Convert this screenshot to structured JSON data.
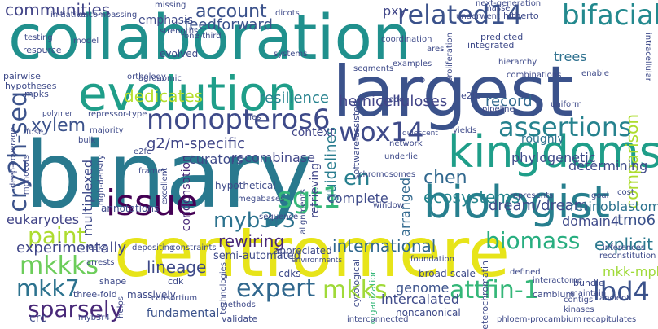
{
  "words": {
    "collaboration": "collaboration",
    "binary": "binary",
    "centromere": "centromere",
    "largest": "largest",
    "evolution": "evolution",
    "kingdoms": "kingdoms",
    "biologist": "biologist",
    "issue": "issue",
    "monopteros6": "monopteros6",
    "bifacial": "bifacial",
    "related14": "related14",
    "cry2h_seq": "cry2h-seq",
    "sgt1": "sgt1",
    "wox14": "wox14",
    "assertions": "assertions",
    "mkkks": "mkkks",
    "mkk7": "mkk7",
    "mkks": "mkks",
    "attfin_1": "attfin-1",
    "lbd4": "lbd4",
    "sparsely": "sparsely",
    "paint": "paint",
    "expert": "expert",
    "myb3r3": "myb3r3",
    "biomass": "biomass",
    "en": "en",
    "chen": "chen",
    "account": "account",
    "communities": "communities",
    "hemicelluloses": "hemicelluloses",
    "record": "record",
    "comparison": "comparison",
    "explicit": "explicit",
    "international": "international",
    "lineage": "lineage",
    "xylem": "xylem",
    "dream_dream": "dream/dream",
    "ecosystems": "ecosystems",
    "g2m_specific": "g2/m-specific",
    "recombinase": "recombinase",
    "experimentally": "experimentally",
    "dedicates": "dedicates",
    "resilience": "resilience",
    "guidelines": "guidelines",
    "phylogenetic": "phylogenetic",
    "determining": "determining",
    "tmo6": "tmo6",
    "domain4": "domain4",
    "retinoblastoma": "retinoblastoma",
    "mkk_mpk": "mkk-mpk",
    "eukaryotes": "eukaryotes",
    "rewiring": "rewiring",
    "complete": "complete",
    "curators": "curators",
    "genome": "genome",
    "intercalated": "intercalated",
    "arranged": "arranged",
    "feedforward": "feedforward",
    "emphasis": "emphasis",
    "pxy": "pxy",
    "trees": "trees",
    "roughly": "roughly",
    "context": "context",
    "multiplexed": "multiplexed",
    "condensation": "condensation",
    "retrieving": "retrieving",
    "hypothetical": "hypothetical",
    "annotations": "annotations",
    "semi_automated": "semi-automated",
    "appreciated": "appreciated",
    "broad_scale": "broad-scale",
    "noncanonical": "noncanonical",
    "fundamental": "fundamental",
    "cre": "cre",
    "three_fold": "three-fold",
    "shape": "shape",
    "cdk": "cdk",
    "cdks": "cdks",
    "massively": "massively",
    "consortium": "consortium",
    "validate": "validate",
    "methods": "methods",
    "organization": "organization",
    "cytological": "cytological",
    "interactome": "interactome",
    "cambium": "cambium",
    "bundle": "bundle",
    "contigs": "contigs",
    "kinases": "kinases",
    "reconstitution": "reconstitution",
    "ancient": "ancient",
    "phloem_procambium": "phloem-procambium",
    "recapitulates": "recapitulates",
    "inferences": "inferences",
    "cost": "cost",
    "goal": "goal",
    "represents": "represents",
    "foundation": "foundation",
    "contribution": "contribution",
    "heterochromatin": "heterochromatin",
    "interconnected": "interconnected",
    "defined": "defined",
    "maintain": "maintain",
    "agronomic": "agronomic",
    "evolved": "evolved",
    "one_third": "one-third",
    "strengths": "strengths",
    "resource": "resource",
    "testing": "testing",
    "initiative": "initiative",
    "encompassing": "encompassing",
    "model": "model",
    "missing": "missing",
    "dicots": "dicots",
    "systems": "systems",
    "software_assisted": "software-assisted",
    "segments": "segments",
    "coordination": "coordination",
    "ares": "ares",
    "examples": "examples",
    "proliferation": "proliferation",
    "integrated": "integrated",
    "predicted": "predicted",
    "masse": "masse",
    "hitherto": "hitherto",
    "underwent": "underwent",
    "next_generation": "next-generation",
    "hierarchy": "hierarchy",
    "enable": "enable",
    "combinations": "combinations",
    "intracellular": "intracellular",
    "e2fb": "e2fb",
    "pairwise": "pairwise",
    "hypotheses": "hypotheses",
    "mpks": "mpks",
    "orthology": "orthology",
    "flies": "flies",
    "code": "code",
    "pipeline": "pipeline",
    "network": "network",
    "yields": "yields",
    "polymer": "polymer",
    "repressor_type": "repressor-type",
    "uniform": "uniform",
    "deep_coverage": "deep-coverage",
    "fuse": "fuse",
    "bulk": "bulk",
    "majority": "majority",
    "e2fc": "e2fc",
    "high_density": "high-density",
    "frames": "frames",
    "underlie": "underlie",
    "chromosomes": "chromosomes",
    "monocots": "monocots",
    "window": "window",
    "alignments": "alignments",
    "excellent": "excellent",
    "depositing": "depositing",
    "constraints": "constraints",
    "megabases": "megabases",
    "sequence": "sequence",
    "breaks": "breaks",
    "arrests": "arrests",
    "myb3r4": "myb3r4",
    "technologies": "technologies",
    "helps": "helps",
    "environments": "environments",
    "mb": "mb",
    "quiescent": "quiescent"
  }
}
